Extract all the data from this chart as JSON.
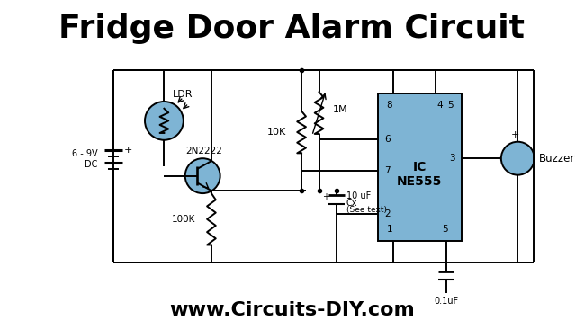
{
  "title": "Fridge Door Alarm Circuit",
  "footer": "www.Circuits-DIY.com",
  "bg_color": "#ffffff",
  "title_fontsize": 26,
  "footer_fontsize": 16,
  "lc": "#000000",
  "ic_fill": "#7eb4d4",
  "ldr_fill": "#7eb4d4",
  "tr_fill": "#7eb4d4",
  "buz_fill": "#7eb4d4",
  "lw": 1.4,
  "labels": {
    "ldr": "LDR",
    "tr": "2N2222",
    "r1m": "1M",
    "r10k": "10K",
    "r100k": "100K",
    "cap10": "10 uF",
    "cx": "Cx",
    "seetext": "(See text)",
    "cap01": "0.1uF",
    "ic": "IC\nNE555",
    "buzzer": "Buzzer",
    "supply": "6 - 9V\nDC",
    "plus_batt": "+",
    "plus_buz": "+",
    "p8": "8",
    "p4": "4",
    "p5t": "5",
    "p6": "6",
    "p7": "7",
    "p3": "3",
    "p2": "2",
    "p1": "1",
    "p5b": "5"
  }
}
